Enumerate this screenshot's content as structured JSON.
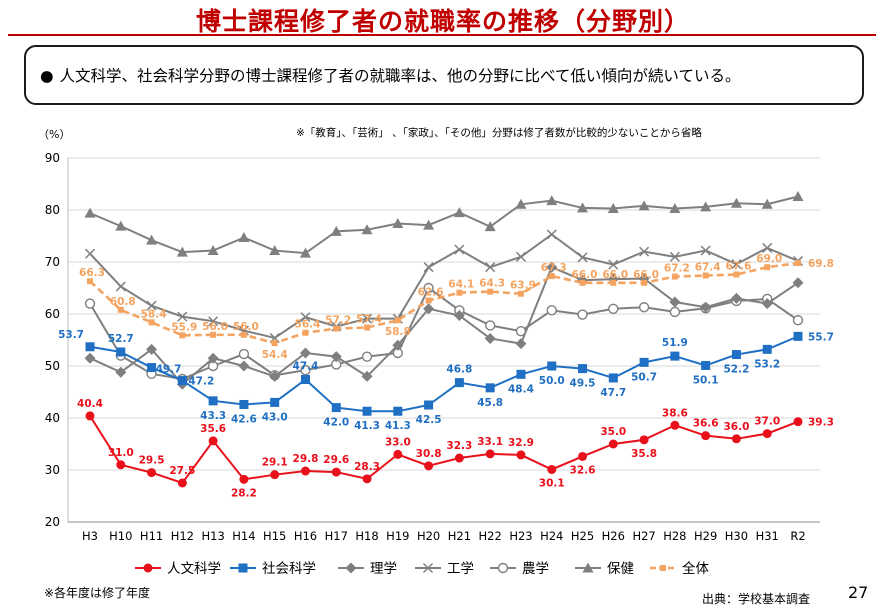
{
  "slide": {
    "title": "博士課程修了者の就職率の推移（分野別）",
    "summary_bullet": "●",
    "summary": "人文科学、社会科学分野の博士課程修了者の就職率は、他の分野に比べて低い傾向が続いている。",
    "footnote": "※各年度は修了年度",
    "source": "出典：学校基本調査",
    "page_number": "27"
  },
  "chart_data": {
    "type": "line",
    "ylabel": "（%）",
    "note": "※「教育」、「芸術」 、「家政」、「その他」分野は修了者数が比較的少ないことから省略",
    "ylim": [
      20,
      90
    ],
    "yticks": [
      20,
      30,
      40,
      50,
      60,
      70,
      80,
      90
    ],
    "grid": true,
    "legend_position": "bottom",
    "categories": [
      "H3",
      "H10",
      "H11",
      "H12",
      "H13",
      "H14",
      "H15",
      "H16",
      "H17",
      "H18",
      "H19",
      "H20",
      "H21",
      "H22",
      "H23",
      "H24",
      "H25",
      "H26",
      "H27",
      "H28",
      "H29",
      "H30",
      "H31",
      "R2"
    ],
    "series": [
      {
        "name": "人文科学",
        "color": "#e8101a",
        "marker": "circle-filled",
        "labels_shown": true,
        "values": [
          40.4,
          31.0,
          29.5,
          27.5,
          35.6,
          28.2,
          29.1,
          29.8,
          29.6,
          28.3,
          33.0,
          30.8,
          32.3,
          33.1,
          32.9,
          30.1,
          32.6,
          35.0,
          35.8,
          38.6,
          36.6,
          36.0,
          37.0,
          39.3
        ]
      },
      {
        "name": "社会科学",
        "color": "#1f6fc4",
        "marker": "square-filled",
        "labels_shown": true,
        "values": [
          53.7,
          52.7,
          49.7,
          47.2,
          43.3,
          42.6,
          43.0,
          47.4,
          42.0,
          41.3,
          41.3,
          42.5,
          46.8,
          45.8,
          48.4,
          50.0,
          49.5,
          47.7,
          50.7,
          51.9,
          50.1,
          52.2,
          53.2,
          55.7
        ]
      },
      {
        "name": "理学",
        "color": "#7f7f7f",
        "marker": "diamond-filled",
        "labels_shown": false,
        "values": [
          51.5,
          48.8,
          53.2,
          46.5,
          51.5,
          50.0,
          48.0,
          52.5,
          51.8,
          48.0,
          54.0,
          61.0,
          59.7,
          55.3,
          54.3,
          69.0,
          66.5,
          66.7,
          66.8,
          62.3,
          61.3,
          63.0,
          62.0,
          66.0
        ]
      },
      {
        "name": "工学",
        "color": "#7f7f7f",
        "marker": "x",
        "labels_shown": false,
        "values": [
          71.6,
          65.3,
          61.6,
          59.5,
          58.6,
          56.8,
          55.4,
          59.4,
          57.6,
          59.1,
          59.1,
          69.0,
          72.4,
          69.0,
          71.0,
          75.3,
          70.9,
          69.5,
          72.0,
          71.0,
          72.2,
          69.6,
          72.7,
          70.2
        ]
      },
      {
        "name": "農学",
        "color": "#7f7f7f",
        "marker": "circle-open",
        "labels_shown": false,
        "values": [
          62.0,
          52.0,
          48.5,
          47.5,
          50.0,
          52.3,
          48.2,
          49.2,
          50.3,
          51.8,
          52.5,
          65.0,
          60.7,
          57.8,
          56.7,
          60.7,
          59.9,
          61.0,
          61.3,
          60.4,
          61.1,
          62.5,
          62.9,
          58.8
        ]
      },
      {
        "name": "保健",
        "color": "#7f7f7f",
        "marker": "triangle-filled",
        "labels_shown": false,
        "values": [
          79.4,
          76.9,
          74.2,
          71.9,
          72.2,
          74.7,
          72.2,
          71.7,
          75.9,
          76.2,
          77.4,
          77.1,
          79.5,
          76.8,
          81.1,
          81.8,
          80.4,
          80.3,
          80.8,
          80.3,
          80.6,
          81.3,
          81.1,
          82.6
        ]
      },
      {
        "name": "全体",
        "color": "#f4a460",
        "marker": "square-small",
        "dashed": true,
        "labels_shown": true,
        "values": [
          66.3,
          60.8,
          58.4,
          55.9,
          56.0,
          56.0,
          54.4,
          56.4,
          57.2,
          57.4,
          58.8,
          62.6,
          64.1,
          64.3,
          63.9,
          67.3,
          66.0,
          66.0,
          66.0,
          67.2,
          67.4,
          67.6,
          69.0,
          69.8
        ]
      }
    ]
  }
}
